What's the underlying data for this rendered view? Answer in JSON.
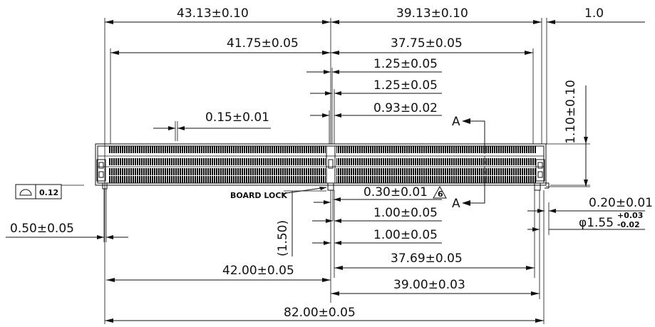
{
  "dimensions": {
    "top_left_overall": "43.13±0.10",
    "top_right_overall": "39.13±0.10",
    "right_small": "1.0",
    "inner_left": "41.75±0.05",
    "inner_right": "37.75±0.05",
    "center_1": "1.25±0.05",
    "center_2": "1.25±0.05",
    "center_3": "0.93±0.02",
    "pin_width": "0.15±0.01",
    "height": "1.10±0.10",
    "coplanarity": "0.12",
    "board_lock_label": "BOARD LOCK",
    "lock_width": "0.30±0.01",
    "lock_flag": "6",
    "lock_pitch_1": "1.00±0.05",
    "lock_pitch_2": "1.00±0.05",
    "lock_offset": "(1.50)",
    "right_lock_width": "0.20±0.01",
    "hole_diameter_main": "φ1.55",
    "hole_tol_plus": "+0.03",
    "hole_tol_minus": "-0.02",
    "left_offset": "0.50±0.05",
    "bottom_right_1": "37.69±0.05",
    "bottom_left": "42.00±0.05",
    "bottom_right_2": "39.00±0.03",
    "overall_length": "82.00±0.05",
    "section_mark_top": "A",
    "section_mark_bottom": "A"
  }
}
